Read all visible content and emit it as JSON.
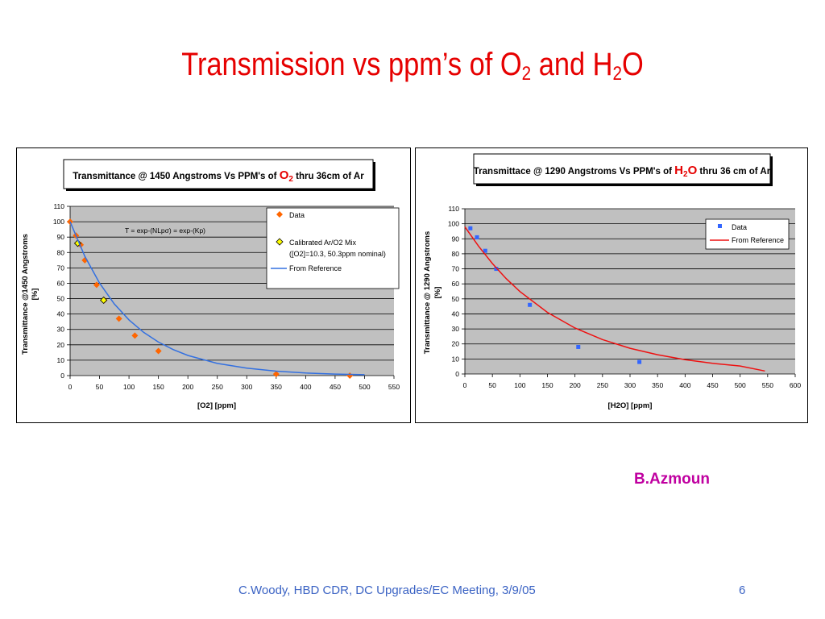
{
  "slide": {
    "title_main": "Transmission vs ppm’s of O",
    "title_sub1": "2",
    "title_mid": " and H",
    "title_sub2": "2",
    "title_end": "O",
    "author": "B.Azmoun",
    "footer": "C.Woody, HBD CDR, DC Upgrades/EC  Meeting, 3/9/05",
    "page_number": "6"
  },
  "colors": {
    "plot_bg": "#c0c0c0",
    "data_o2": "#ff6600",
    "calibrated": "#ffff00",
    "ref_o2": "#3370e0",
    "data_h2o": "#3366ff",
    "ref_h2o": "#ee1111",
    "title_red": "#e60000",
    "author": "#c000a0",
    "footer": "#3b63c4"
  },
  "chart_data": [
    {
      "type": "scatter",
      "title_pre": "Transmittance @ 1450 Angstroms Vs PPM's of ",
      "title_species": "O",
      "title_sub": "2",
      "title_post": " thru 36cm of Ar",
      "xlabel": "[O2]  [ppm]",
      "ylabel_line1": "Transmittance @1450 Angstroms",
      "ylabel_line2": "[%]",
      "xlim": [
        0,
        550
      ],
      "ylim": [
        0,
        110
      ],
      "xticks": [
        0,
        50,
        100,
        150,
        200,
        250,
        300,
        350,
        400,
        450,
        500,
        550
      ],
      "yticks": [
        0,
        10,
        20,
        30,
        40,
        50,
        60,
        70,
        80,
        90,
        100,
        110
      ],
      "annotation": "T = exp-(NLpσ) = exp-(Kp)",
      "legend_position": "top-right",
      "legend": [
        "Data",
        "Calibrated  Ar/O2 Mix",
        "([O2]=10.3, 50.3ppm nominal)",
        "From Reference"
      ],
      "series": [
        {
          "name": "Data",
          "marker": "diamond",
          "x": [
            0,
            10,
            18,
            25,
            45,
            58,
            83,
            110,
            150,
            350,
            475
          ],
          "y": [
            100,
            91,
            85,
            75,
            59,
            49,
            37,
            26,
            16,
            1,
            0
          ]
        },
        {
          "name": "Calibrated  Ar/O2 Mix",
          "marker": "diamond",
          "x": [
            13,
            57
          ],
          "y": [
            86,
            49
          ]
        },
        {
          "name": "From Reference",
          "type": "line",
          "x": [
            0,
            25,
            50,
            75,
            100,
            125,
            150,
            175,
            200,
            250,
            300,
            350,
            400,
            450,
            500
          ],
          "y": [
            100,
            77.5,
            60.2,
            46.6,
            36.2,
            28.1,
            21.8,
            16.9,
            13.1,
            7.9,
            4.8,
            2.9,
            1.7,
            1.0,
            0.6
          ]
        }
      ]
    },
    {
      "type": "scatter",
      "title_pre": "Transmittace @ 1290 Angstroms Vs PPM's of ",
      "title_species": "H",
      "title_sub": "2",
      "title_species2": "O",
      "title_post": " thru 36 cm of Ar",
      "xlabel": "[H2O] [ppm]",
      "ylabel_line1": "Transmittance @ 1290 Angstroms",
      "ylabel_line2": "[%]",
      "xlim": [
        0,
        600
      ],
      "ylim": [
        0,
        110
      ],
      "xticks": [
        0,
        50,
        100,
        150,
        200,
        250,
        300,
        350,
        400,
        450,
        500,
        550,
        600
      ],
      "yticks": [
        0,
        10,
        20,
        30,
        40,
        50,
        60,
        70,
        80,
        90,
        100,
        110
      ],
      "legend_position": "top-right",
      "legend": [
        "Data",
        "From Reference"
      ],
      "series": [
        {
          "name": "Data",
          "marker": "square",
          "x": [
            10,
            22,
            37,
            57,
            118,
            206,
            317
          ],
          "y": [
            97,
            91,
            82,
            70,
            46,
            18,
            8
          ]
        },
        {
          "name": "From Reference",
          "type": "line",
          "x": [
            0,
            25,
            50,
            75,
            100,
            150,
            200,
            250,
            300,
            350,
            400,
            450,
            500,
            545
          ],
          "y": [
            98,
            85,
            73.5,
            63.5,
            54.9,
            41,
            30.6,
            22.9,
            17.1,
            12.8,
            9.5,
            7.1,
            5.3,
            2
          ]
        }
      ]
    }
  ]
}
